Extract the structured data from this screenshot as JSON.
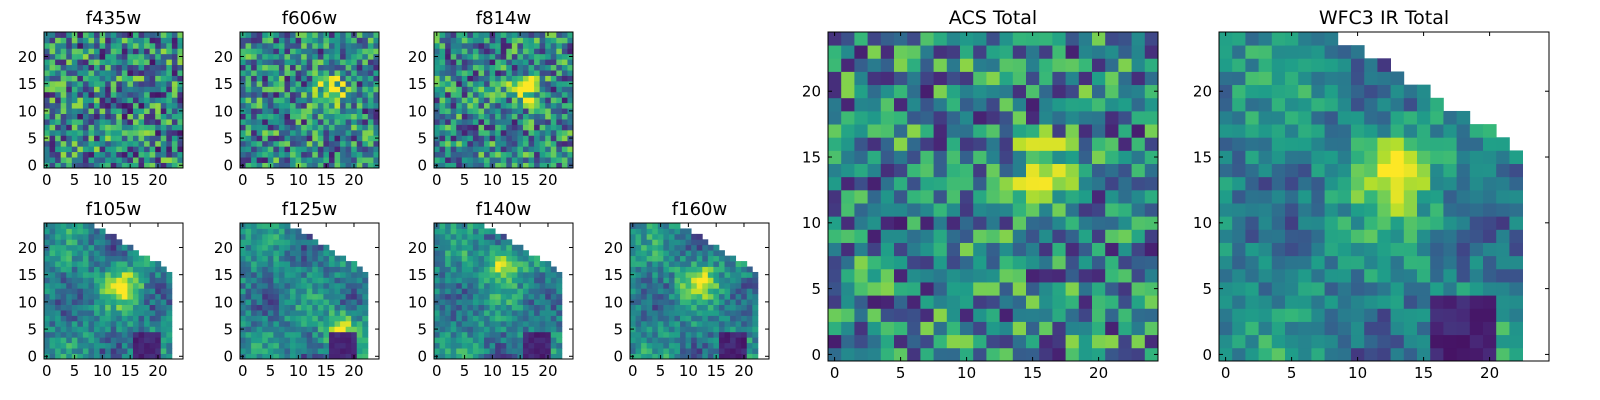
{
  "figure": {
    "description": "Grid of pixel-map (heatmap) cutouts in HST filters with two combined stacks",
    "colormap": "viridis"
  },
  "chart_data": [
    {
      "type": "heatmap",
      "title": "f435w",
      "grid": [
        25,
        25
      ],
      "xticks": [
        0,
        5,
        10,
        15,
        20
      ],
      "yticks": [
        0,
        5,
        10,
        15,
        20
      ],
      "mask": "none",
      "pattern": "noise",
      "feature": null
    },
    {
      "type": "heatmap",
      "title": "f606w",
      "grid": [
        25,
        25
      ],
      "xticks": [
        0,
        5,
        10,
        15,
        20
      ],
      "yticks": [
        0,
        5,
        10,
        15,
        20
      ],
      "mask": "none",
      "pattern": "noise+source",
      "feature": {
        "x": 16,
        "y": 14,
        "level": "high"
      }
    },
    {
      "type": "heatmap",
      "title": "f814w",
      "grid": [
        25,
        25
      ],
      "xticks": [
        0,
        5,
        10,
        15,
        20
      ],
      "yticks": [
        0,
        5,
        10,
        15,
        20
      ],
      "mask": "none",
      "pattern": "noise+source",
      "feature": {
        "x": 16,
        "y": 14,
        "level": "high"
      }
    },
    {
      "type": "heatmap",
      "title": "f105w",
      "grid": [
        25,
        25
      ],
      "xticks": [
        0,
        5,
        10,
        15,
        20
      ],
      "yticks": [
        0,
        5,
        10,
        15,
        20
      ],
      "mask": "upper-right-triangle",
      "pattern": "smooth",
      "feature": {
        "x": 14,
        "y": 13,
        "level": "high"
      }
    },
    {
      "type": "heatmap",
      "title": "f125w",
      "grid": [
        25,
        25
      ],
      "xticks": [
        0,
        5,
        10,
        15,
        20
      ],
      "yticks": [
        0,
        5,
        10,
        15,
        20
      ],
      "mask": "upper-right-triangle",
      "pattern": "smooth",
      "feature": {
        "x": 18,
        "y": 5,
        "level": "high"
      }
    },
    {
      "type": "heatmap",
      "title": "f140w",
      "grid": [
        25,
        25
      ],
      "xticks": [
        0,
        5,
        10,
        15,
        20
      ],
      "yticks": [
        0,
        5,
        10,
        15,
        20
      ],
      "mask": "upper-right-triangle",
      "pattern": "smooth",
      "feature": {
        "x": 12,
        "y": 17,
        "level": "high"
      }
    },
    {
      "type": "heatmap",
      "title": "f160w",
      "grid": [
        25,
        25
      ],
      "xticks": [
        0,
        5,
        10,
        15,
        20
      ],
      "yticks": [
        0,
        5,
        10,
        15,
        20
      ],
      "mask": "upper-right-triangle",
      "pattern": "smooth",
      "feature": {
        "x": 12,
        "y": 14,
        "level": "high"
      }
    },
    {
      "type": "heatmap",
      "title": "ACS Total",
      "grid": [
        25,
        25
      ],
      "xticks": [
        0,
        5,
        10,
        15,
        20
      ],
      "yticks": [
        0,
        5,
        10,
        15,
        20
      ],
      "mask": "none",
      "pattern": "noise+source",
      "feature": {
        "x": 16,
        "y": 14,
        "level": "high"
      }
    },
    {
      "type": "heatmap",
      "title": "WFC3 IR Total",
      "grid": [
        25,
        25
      ],
      "xticks": [
        0,
        5,
        10,
        15,
        20
      ],
      "yticks": [
        0,
        5,
        10,
        15,
        20
      ],
      "mask": "upper-right-triangle",
      "pattern": "smooth",
      "feature": {
        "x": 13,
        "y": 14,
        "level": "high"
      }
    }
  ]
}
